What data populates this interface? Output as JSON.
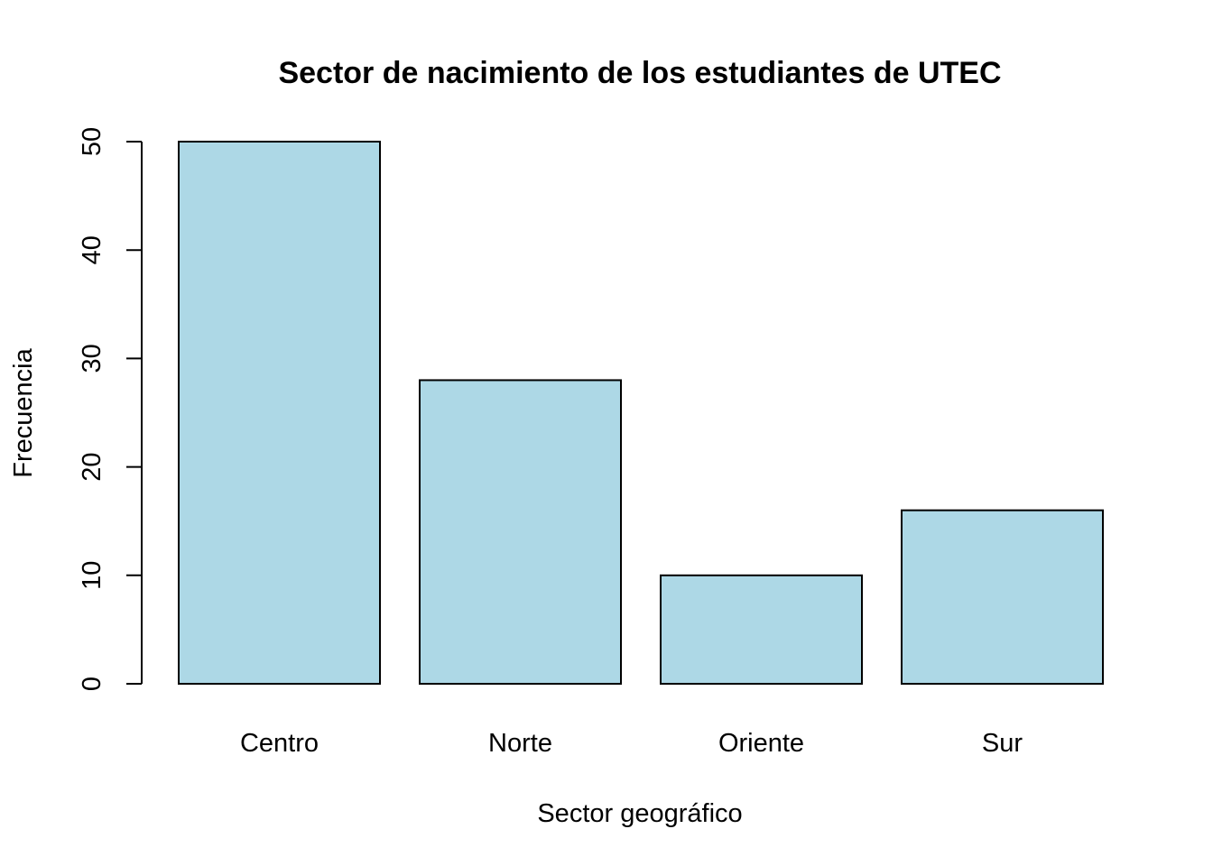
{
  "chart_data": {
    "type": "bar",
    "title": "Sector de nacimiento de los estudiantes de UTEC",
    "xlabel": "Sector geográfico",
    "ylabel": "Frecuencia",
    "categories": [
      "Centro",
      "Norte",
      "Oriente",
      "Sur"
    ],
    "values": [
      50,
      28,
      10,
      16
    ],
    "ylim": [
      0,
      50
    ],
    "yticks": [
      0,
      10,
      20,
      30,
      40,
      50
    ],
    "grid": false,
    "legend": "none",
    "bar_color": "#ADD8E6",
    "border_color": "#000000"
  }
}
